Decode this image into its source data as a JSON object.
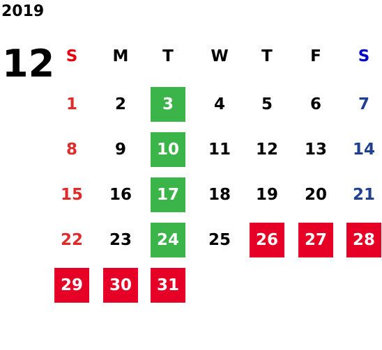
{
  "year": "2019",
  "month": "12",
  "weekdays": [
    {
      "label": "S",
      "color": "#e8000b"
    },
    {
      "label": "M",
      "color": "#000000"
    },
    {
      "label": "T",
      "color": "#000000"
    },
    {
      "label": "W",
      "color": "#000000"
    },
    {
      "label": "T",
      "color": "#000000"
    },
    {
      "label": "F",
      "color": "#000000"
    },
    {
      "label": "S",
      "color": "#0000cc"
    }
  ],
  "column_colors": [
    "#e02b2b",
    "#000000",
    "#000000",
    "#000000",
    "#000000",
    "#000000",
    "#1f3f8f"
  ],
  "highlight_text_color": "#ffffff",
  "weeks": [
    [
      1,
      2,
      {
        "day": 3,
        "background": "#3bb44a"
      },
      4,
      5,
      6,
      7
    ],
    [
      8,
      9,
      {
        "day": 10,
        "background": "#3bb44a"
      },
      11,
      12,
      13,
      14
    ],
    [
      15,
      16,
      {
        "day": 17,
        "background": "#3bb44a"
      },
      18,
      19,
      20,
      21
    ],
    [
      22,
      23,
      {
        "day": 24,
        "background": "#3bb44a"
      },
      25,
      {
        "day": 26,
        "background": "#e60026"
      },
      {
        "day": 27,
        "background": "#e60026"
      },
      {
        "day": 28,
        "background": "#e60026"
      }
    ],
    [
      {
        "day": 29,
        "background": "#e60026"
      },
      {
        "day": 30,
        "background": "#e60026"
      },
      {
        "day": 31,
        "background": "#e60026"
      },
      null,
      null,
      null,
      null
    ]
  ]
}
